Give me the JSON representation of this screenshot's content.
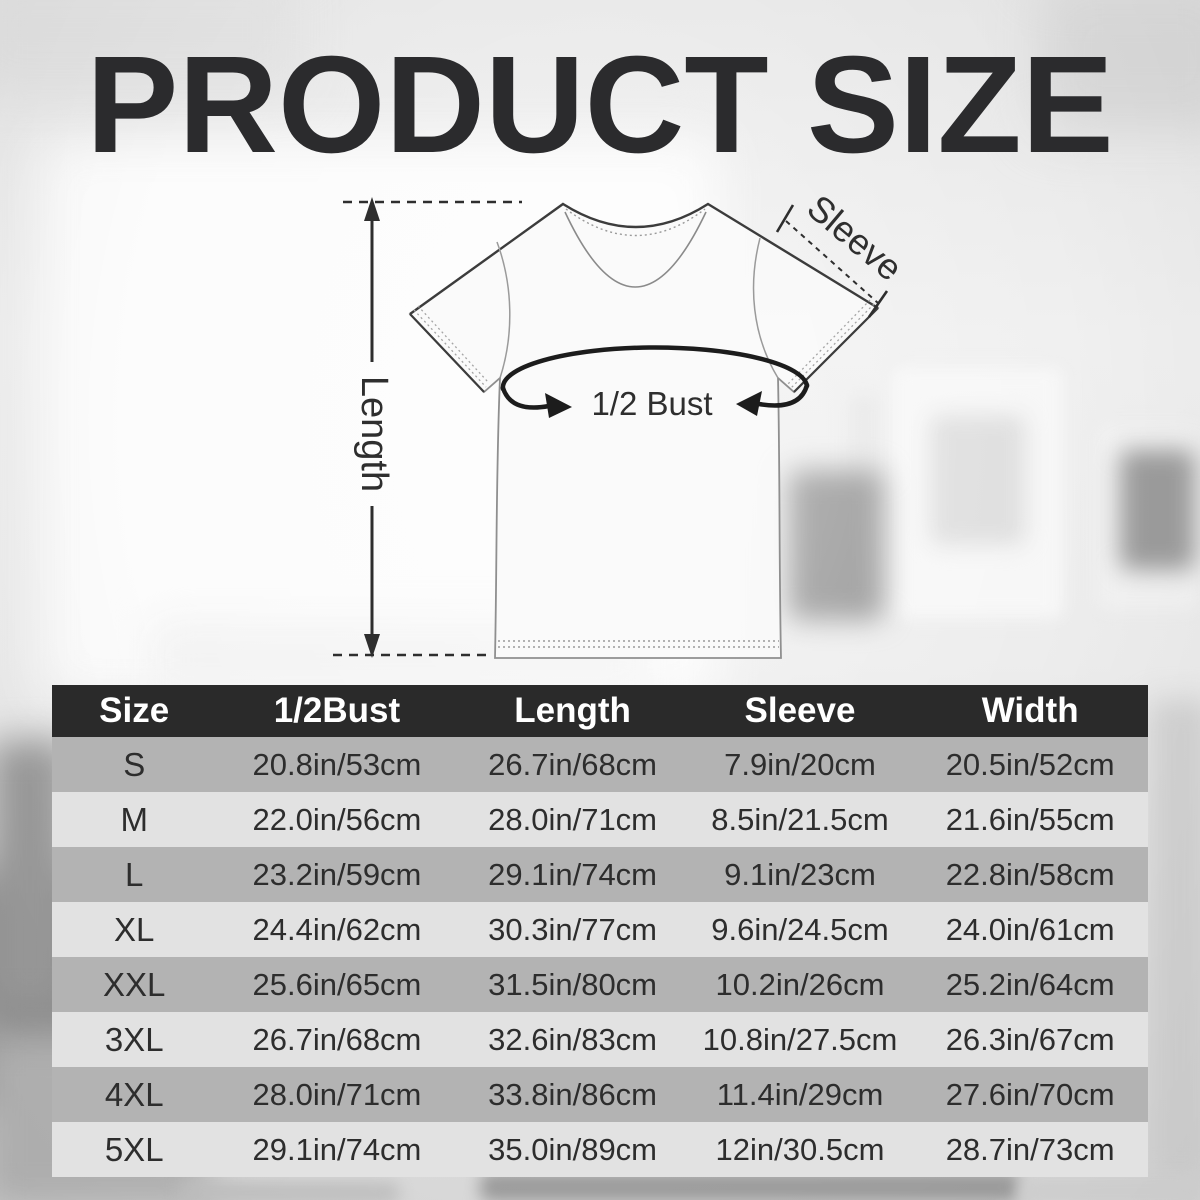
{
  "header": {
    "title": "PRODUCT SIZE"
  },
  "diagram": {
    "labels": {
      "length": "Length",
      "sleeve": "Sleeve",
      "bust": "1/2 Bust"
    }
  },
  "table": {
    "columns": [
      "Size",
      "1/2Bust",
      "Length",
      "Sleeve",
      "Width"
    ],
    "rows": [
      {
        "size": "S",
        "bust": "20.8in/53cm",
        "length": "26.7in/68cm",
        "sleeve": "7.9in/20cm",
        "width": "20.5in/52cm"
      },
      {
        "size": "M",
        "bust": "22.0in/56cm",
        "length": "28.0in/71cm",
        "sleeve": "8.5in/21.5cm",
        "width": "21.6in/55cm"
      },
      {
        "size": "L",
        "bust": "23.2in/59cm",
        "length": "29.1in/74cm",
        "sleeve": "9.1in/23cm",
        "width": "22.8in/58cm"
      },
      {
        "size": "XL",
        "bust": "24.4in/62cm",
        "length": "30.3in/77cm",
        "sleeve": "9.6in/24.5cm",
        "width": "24.0in/61cm"
      },
      {
        "size": "XXL",
        "bust": "25.6in/65cm",
        "length": "31.5in/80cm",
        "sleeve": "10.2in/26cm",
        "width": "25.2in/64cm"
      },
      {
        "size": "3XL",
        "bust": "26.7in/68cm",
        "length": "32.6in/83cm",
        "sleeve": "10.8in/27.5cm",
        "width": "26.3in/67cm"
      },
      {
        "size": "4XL",
        "bust": "28.0in/71cm",
        "length": "33.8in/86cm",
        "sleeve": "11.4in/29cm",
        "width": "27.6in/70cm"
      },
      {
        "size": "5XL",
        "bust": "29.1in/74cm",
        "length": "35.0in/89cm",
        "sleeve": "12in/30.5cm",
        "width": "28.7in/73cm"
      }
    ]
  },
  "colors": {
    "header_bg": "#2a2a2a",
    "row_dark": "#b3b3b3",
    "row_light": "#e2e2e2",
    "title": "#2b2b2d",
    "cell_text": "#2d2d2d",
    "annotation": "#2e2e2e"
  }
}
